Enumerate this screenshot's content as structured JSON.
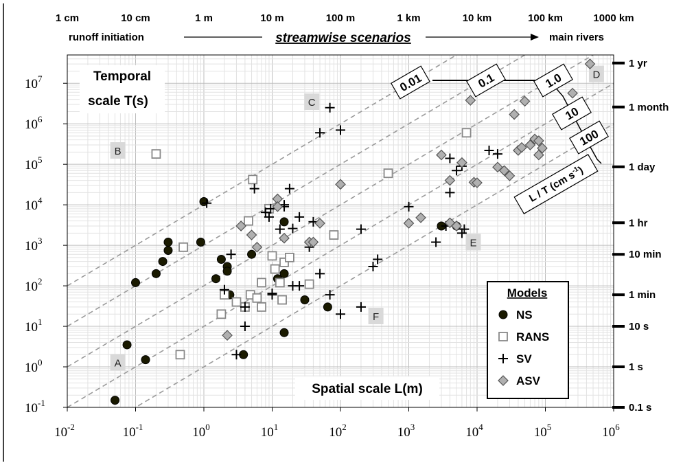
{
  "chart_data": {
    "type": "scatter",
    "xscale": "log",
    "yscale": "log",
    "xlim": [
      0.01,
      1000000
    ],
    "ylim": [
      0.1,
      50000000
    ],
    "grid": true,
    "xlabel": "Spatial scale L(m)",
    "ylabel_lines": [
      "Temporal",
      "scale T(s)"
    ],
    "x_ticks": [
      {
        "value": 0.01,
        "base": "10",
        "exp": "-2"
      },
      {
        "value": 0.1,
        "base": "10",
        "exp": "-1"
      },
      {
        "value": 1,
        "base": "10",
        "exp": "0"
      },
      {
        "value": 10,
        "base": "10",
        "exp": "1"
      },
      {
        "value": 100,
        "base": "10",
        "exp": "2"
      },
      {
        "value": 1000,
        "base": "10",
        "exp": "3"
      },
      {
        "value": 10000,
        "base": "10",
        "exp": "4"
      },
      {
        "value": 100000,
        "base": "10",
        "exp": "5"
      },
      {
        "value": 1000000,
        "base": "10",
        "exp": "6"
      }
    ],
    "y_ticks": [
      {
        "value": 0.1,
        "base": "10",
        "exp": "-1"
      },
      {
        "value": 1,
        "base": "10",
        "exp": "0"
      },
      {
        "value": 10,
        "base": "10",
        "exp": "1"
      },
      {
        "value": 100,
        "base": "10",
        "exp": "2"
      },
      {
        "value": 1000,
        "base": "10",
        "exp": "3"
      },
      {
        "value": 10000,
        "base": "10",
        "exp": "4"
      },
      {
        "value": 100000,
        "base": "10",
        "exp": "5"
      },
      {
        "value": 1000000,
        "base": "10",
        "exp": "6"
      },
      {
        "value": 10000000,
        "base": "10",
        "exp": "7"
      }
    ],
    "top_scale": [
      {
        "label": "1 cm",
        "value": 0.01
      },
      {
        "label": "10 cm",
        "value": 0.1
      },
      {
        "label": "1 m",
        "value": 1
      },
      {
        "label": "10 m",
        "value": 10
      },
      {
        "label": "100 m",
        "value": 100
      },
      {
        "label": "1 km",
        "value": 1000
      },
      {
        "label": "10 km",
        "value": 10000
      },
      {
        "label": "100 km",
        "value": 100000
      },
      {
        "label": "1000 km",
        "value": 1000000
      }
    ],
    "right_scale": [
      {
        "label": "1 yr",
        "value": 31536000
      },
      {
        "label": "1 month",
        "value": 2592000
      },
      {
        "label": "1 day",
        "value": 86400
      },
      {
        "label": "1 hr",
        "value": 3600
      },
      {
        "label": "10 min",
        "value": 600
      },
      {
        "label": "1 min",
        "value": 60
      },
      {
        "label": "10 s",
        "value": 10
      },
      {
        "label": "1 s",
        "value": 1
      },
      {
        "label": "0.1 s",
        "value": 0.1
      }
    ],
    "scenario_labels": {
      "left": "runoff initiation",
      "center": "streamwise scenarios",
      "right": "main rivers"
    },
    "velocity_lines": [
      {
        "label": "0.01",
        "velocity_cm_s": 0.01
      },
      {
        "label": "0.1",
        "velocity_cm_s": 0.1
      },
      {
        "label": "1.0",
        "velocity_cm_s": 1
      },
      {
        "label": "10",
        "velocity_cm_s": 10
      },
      {
        "label": "100",
        "velocity_cm_s": 100
      }
    ],
    "velocity_axis_label": "L / T (cm s",
    "velocity_axis_exp": "-1",
    "velocity_axis_close": ")",
    "annotations": [
      {
        "text": "A",
        "x": 0.055,
        "y": 1.3
      },
      {
        "text": "B",
        "x": 0.055,
        "y": 220000
      },
      {
        "text": "C",
        "x": 38,
        "y": 3500000
      },
      {
        "text": "D",
        "x": 560000,
        "y": 17000000
      },
      {
        "text": "E",
        "x": 8800,
        "y": 1200
      },
      {
        "text": "F",
        "x": 330,
        "y": 18
      }
    ],
    "legend_title": "Models",
    "legend_position": "lower-right",
    "series": [
      {
        "name": "NS",
        "marker": "circle",
        "points": [
          [
            0.05,
            0.15
          ],
          [
            0.075,
            3.5
          ],
          [
            0.1,
            120
          ],
          [
            0.14,
            1.5
          ],
          [
            0.2,
            200
          ],
          [
            0.25,
            400
          ],
          [
            0.3,
            1200
          ],
          [
            0.3,
            750
          ],
          [
            0.9,
            1200
          ],
          [
            1.0,
            12000
          ],
          [
            1.5,
            150
          ],
          [
            1.8,
            450
          ],
          [
            2.2,
            300
          ],
          [
            2.2,
            230
          ],
          [
            2.4,
            60
          ],
          [
            3.8,
            2
          ],
          [
            5.0,
            600
          ],
          [
            12,
            150
          ],
          [
            15,
            200
          ],
          [
            15,
            3800
          ],
          [
            15,
            7
          ],
          [
            30,
            45
          ],
          [
            65,
            30
          ],
          [
            3000,
            3000
          ],
          [
            5000,
            3000
          ]
        ]
      },
      {
        "name": "RANS",
        "marker": "square",
        "points": [
          [
            0.2,
            180000
          ],
          [
            0.45,
            2
          ],
          [
            0.5,
            900
          ],
          [
            1.8,
            20
          ],
          [
            2.0,
            60
          ],
          [
            3.0,
            40
          ],
          [
            4.0,
            30
          ],
          [
            4.5,
            4000
          ],
          [
            4.8,
            60
          ],
          [
            5.2,
            42000
          ],
          [
            6.0,
            50
          ],
          [
            7.0,
            120
          ],
          [
            7.0,
            30
          ],
          [
            9.0,
            8000
          ],
          [
            10,
            550
          ],
          [
            11,
            260
          ],
          [
            13,
            120
          ],
          [
            14,
            45
          ],
          [
            15,
            380
          ],
          [
            18,
            500
          ],
          [
            35,
            110
          ],
          [
            80,
            1800
          ],
          [
            500,
            60000
          ],
          [
            7000,
            600000
          ]
        ]
      },
      {
        "name": "SV",
        "marker": "plus",
        "points": [
          [
            1.1,
            11000
          ],
          [
            2.0,
            80
          ],
          [
            2.5,
            600
          ],
          [
            3.0,
            2
          ],
          [
            4.0,
            30
          ],
          [
            4.0,
            10
          ],
          [
            5.5,
            25000
          ],
          [
            8.0,
            6500
          ],
          [
            9.0,
            5000
          ],
          [
            9.5,
            8000
          ],
          [
            10,
            60
          ],
          [
            10,
            65
          ],
          [
            13,
            2500
          ],
          [
            15,
            10000
          ],
          [
            15,
            9000
          ],
          [
            18,
            25000
          ],
          [
            20,
            100
          ],
          [
            20,
            2600
          ],
          [
            25,
            5000
          ],
          [
            25,
            100
          ],
          [
            35,
            900
          ],
          [
            40,
            3800
          ],
          [
            50,
            600000
          ],
          [
            50,
            200
          ],
          [
            70,
            2500000
          ],
          [
            70,
            60
          ],
          [
            100,
            700000
          ],
          [
            100,
            20
          ],
          [
            200,
            2500
          ],
          [
            200,
            30
          ],
          [
            300,
            300
          ],
          [
            350,
            450
          ],
          [
            1000,
            9000
          ],
          [
            2500,
            1200
          ],
          [
            3500,
            3000
          ],
          [
            4000,
            140000
          ],
          [
            4000,
            20000
          ],
          [
            5000,
            70000
          ],
          [
            5000,
            3000
          ],
          [
            6000,
            90000
          ],
          [
            6000,
            2000
          ],
          [
            6500,
            2500
          ],
          [
            15000,
            220000
          ],
          [
            20000,
            180000
          ]
        ]
      },
      {
        "name": "ASV",
        "marker": "diamond",
        "points": [
          [
            2.2,
            6
          ],
          [
            3.5,
            3000
          ],
          [
            5.0,
            1800
          ],
          [
            6.0,
            900
          ],
          [
            12,
            14000
          ],
          [
            12,
            9000
          ],
          [
            15,
            1500
          ],
          [
            35,
            1200
          ],
          [
            40,
            1200
          ],
          [
            50,
            3500
          ],
          [
            100,
            32000
          ],
          [
            1000,
            3500
          ],
          [
            1500,
            4800
          ],
          [
            3000,
            170000
          ],
          [
            4000,
            40000
          ],
          [
            4000,
            3600
          ],
          [
            5000,
            3000
          ],
          [
            6000,
            110000
          ],
          [
            8000,
            3800000
          ],
          [
            9000,
            36000
          ],
          [
            10000,
            35000
          ],
          [
            20000,
            85000
          ],
          [
            25000,
            70000
          ],
          [
            30000,
            52000
          ],
          [
            35000,
            1700000
          ],
          [
            40000,
            220000
          ],
          [
            45000,
            260000
          ],
          [
            50000,
            3600000
          ],
          [
            60000,
            300000
          ],
          [
            70000,
            420000
          ],
          [
            80000,
            170000
          ],
          [
            80000,
            380000
          ],
          [
            90000,
            250000
          ],
          [
            250000,
            5700000
          ],
          [
            450000,
            30000000
          ]
        ]
      }
    ]
  }
}
